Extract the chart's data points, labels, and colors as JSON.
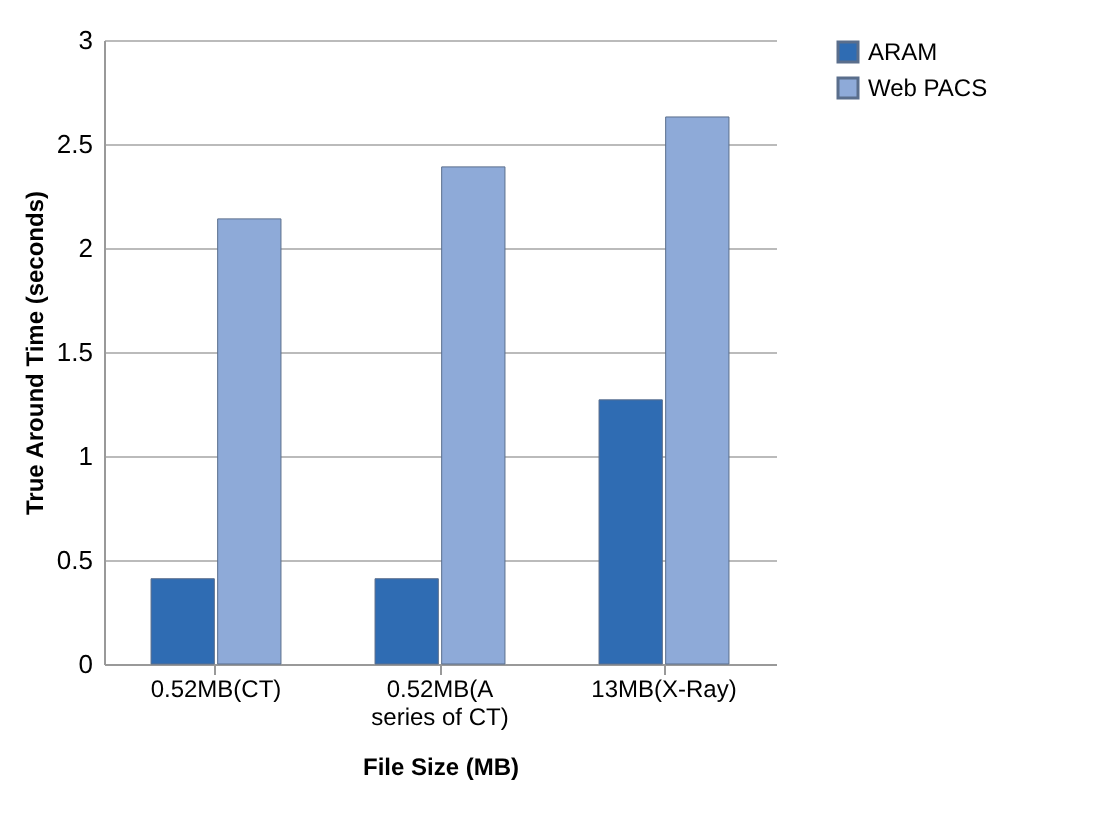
{
  "chart_data": {
    "type": "bar",
    "xlabel": "File Size (MB)",
    "ylabel": "True Around Time (seconds)",
    "categories": [
      "0.52MB(CT)",
      "0.52MB(A series of CT)",
      "13MB(X-Ray)"
    ],
    "series": [
      {
        "name": "ARAM",
        "color": "#2f6cb3",
        "values": [
          0.41,
          0.41,
          1.27
        ]
      },
      {
        "name": "Web PACS",
        "color": "#8eaad8",
        "values": [
          2.14,
          2.39,
          2.63
        ]
      }
    ],
    "ylim": [
      0,
      3
    ],
    "yticks": [
      0,
      0.5,
      1,
      1.5,
      2,
      2.5,
      3
    ],
    "grid": "y",
    "legend": "right"
  }
}
